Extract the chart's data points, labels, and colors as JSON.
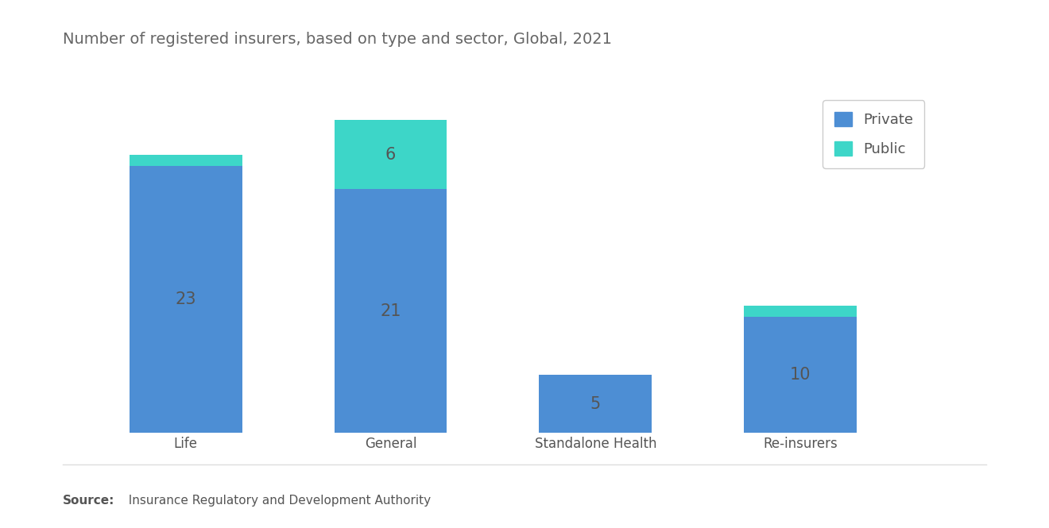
{
  "title": "Number of registered insurers, based on type and sector, Global, 2021",
  "categories": [
    "Life",
    "General",
    "Standalone Health",
    "Re-insurers"
  ],
  "private_values": [
    23,
    21,
    5,
    10
  ],
  "public_values": [
    1,
    6,
    0,
    1
  ],
  "private_color": "#4d8ed4",
  "public_color": "#3dd6c8",
  "text_color": "#555555",
  "title_color": "#666666",
  "background_color": "#ffffff",
  "bar_width": 0.55,
  "legend_labels": [
    "Private",
    "Public"
  ],
  "source_label_bold": "Source:",
  "source_text": "  Insurance Regulatory and Development Authority",
  "label_fontsize": 13,
  "title_fontsize": 14,
  "tick_fontsize": 12,
  "value_fontsize": 15,
  "ylim_factor": 1.18
}
